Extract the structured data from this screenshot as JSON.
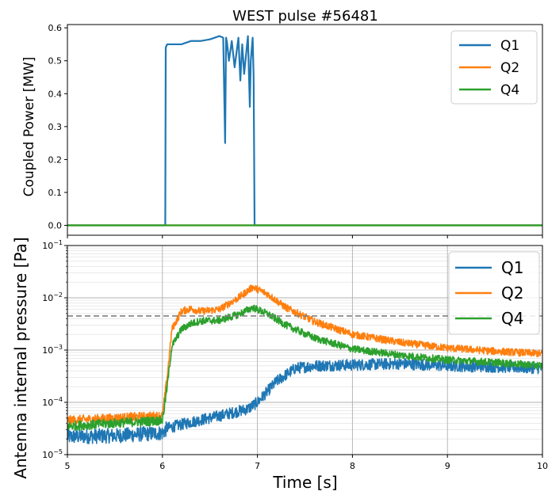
{
  "title": "WEST pulse #56481",
  "colors": {
    "Q1": "#1f77b4",
    "Q2": "#ff7f0e",
    "Q4": "#2ca02c",
    "threshold": "#808080",
    "grid": "#b0b0b0"
  },
  "chart_data": [
    {
      "type": "line",
      "panel": "top",
      "ylabel": "Coupled Power [MW]",
      "xlim": [
        5,
        10
      ],
      "ylim": [
        -0.03,
        0.61
      ],
      "yticks": [
        0.0,
        0.1,
        0.2,
        0.3,
        0.4,
        0.5,
        0.6
      ],
      "ytick_labels": [
        "0.0",
        "0.1",
        "0.2",
        "0.3",
        "0.4",
        "0.5",
        "0.6"
      ],
      "grid": false,
      "legend": "top-right",
      "series": [
        {
          "name": "Q1",
          "x": [
            5.0,
            6.03,
            6.035,
            6.05,
            6.1,
            6.2,
            6.3,
            6.4,
            6.5,
            6.6,
            6.64,
            6.66,
            6.67,
            6.68,
            6.7,
            6.73,
            6.76,
            6.8,
            6.82,
            6.84,
            6.86,
            6.9,
            6.92,
            6.93,
            6.95,
            6.96,
            6.97,
            7.0,
            10.0
          ],
          "y": [
            0.0,
            0.0,
            0.54,
            0.55,
            0.55,
            0.55,
            0.56,
            0.56,
            0.565,
            0.575,
            0.57,
            0.25,
            0.57,
            0.555,
            0.5,
            0.56,
            0.48,
            0.57,
            0.44,
            0.55,
            0.46,
            0.575,
            0.36,
            0.5,
            0.57,
            0.45,
            0.0,
            0.0,
            0.0
          ]
        },
        {
          "name": "Q2",
          "x": [
            5.0,
            10.0
          ],
          "y": [
            0.0,
            0.0
          ]
        },
        {
          "name": "Q4",
          "x": [
            5.0,
            10.0
          ],
          "y": [
            0.0,
            0.0
          ]
        }
      ]
    },
    {
      "type": "line",
      "panel": "bottom",
      "xlabel": "Time [s]",
      "ylabel": "Antenna internal pressure [Pa]",
      "xlim": [
        5,
        10
      ],
      "xticks": [
        5,
        6,
        7,
        8,
        9,
        10
      ],
      "xtick_labels": [
        "5",
        "6",
        "7",
        "8",
        "9",
        "10"
      ],
      "yscale": "log",
      "ylim": [
        1e-05,
        0.1
      ],
      "yticks": [
        1e-05,
        0.0001,
        0.001,
        0.01,
        0.1
      ],
      "ytick_labels": [
        [
          "10",
          "−5"
        ],
        [
          "10",
          "−4"
        ],
        [
          "10",
          "−3"
        ],
        [
          "10",
          "−2"
        ],
        [
          "10",
          "−1"
        ]
      ],
      "grid": true,
      "legend": "top-right",
      "hline": 0.0045,
      "series": [
        {
          "name": "Q1",
          "x": [
            5.0,
            5.5,
            6.0,
            6.05,
            6.3,
            6.6,
            6.9,
            7.0,
            7.2,
            7.4,
            7.6,
            8.0,
            8.5,
            9.0,
            9.5,
            10.0
          ],
          "y": [
            2.2e-05,
            2.3e-05,
            2.6e-05,
            3.2e-05,
            4.2e-05,
            5.5e-05,
            7.5e-05,
            0.0001,
            0.00025,
            0.00045,
            0.0005,
            0.00052,
            0.00055,
            0.0005,
            0.00048,
            0.00045
          ]
        },
        {
          "name": "Q2",
          "x": [
            5.0,
            5.5,
            6.0,
            6.05,
            6.1,
            6.2,
            6.3,
            6.4,
            6.6,
            6.8,
            6.95,
            7.1,
            7.3,
            7.6,
            8.0,
            8.5,
            9.0,
            9.5,
            10.0
          ],
          "y": [
            4.5e-05,
            5e-05,
            5.5e-05,
            0.0003,
            0.0025,
            0.0055,
            0.0062,
            0.0055,
            0.006,
            0.01,
            0.016,
            0.012,
            0.0065,
            0.0035,
            0.002,
            0.0014,
            0.0011,
            0.00095,
            0.00085
          ]
        },
        {
          "name": "Q4",
          "x": [
            5.0,
            5.5,
            6.0,
            6.05,
            6.1,
            6.2,
            6.3,
            6.4,
            6.6,
            6.8,
            6.95,
            7.1,
            7.3,
            7.6,
            8.0,
            8.5,
            9.0,
            9.5,
            10.0
          ],
          "y": [
            3.5e-05,
            4e-05,
            4.5e-05,
            0.0002,
            0.0012,
            0.0025,
            0.0032,
            0.0036,
            0.0037,
            0.0048,
            0.0065,
            0.005,
            0.003,
            0.0017,
            0.00105,
            0.0008,
            0.00065,
            0.00058,
            0.0005
          ]
        }
      ]
    }
  ]
}
